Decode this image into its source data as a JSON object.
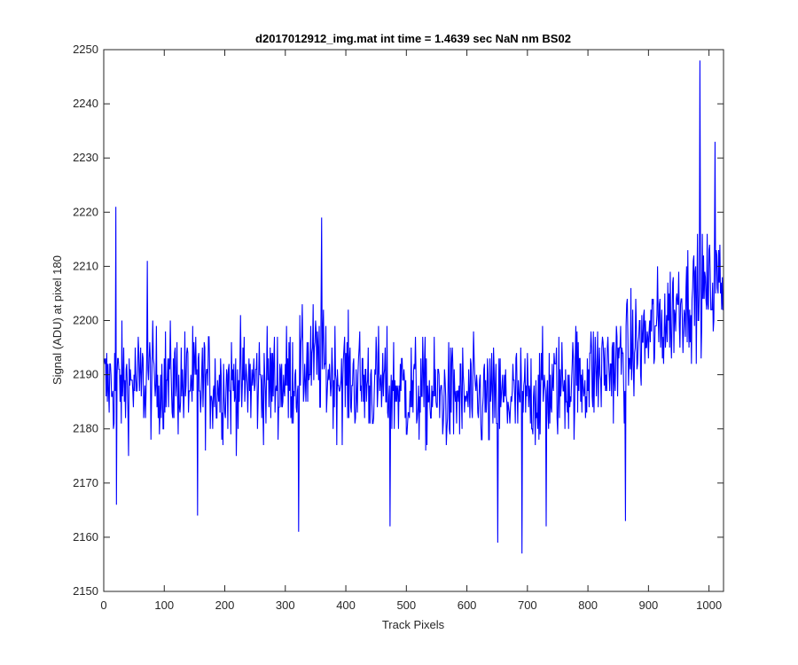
{
  "chart_data": {
    "type": "line",
    "title": "d2017012912_img.mat int time = 1.4639 sec  NaN nm BS02",
    "xlabel": "Track Pixels",
    "ylabel": "Signal (ADU) at pixel 180",
    "xlim": [
      0,
      1024
    ],
    "ylim": [
      2150,
      2250
    ],
    "xticks": [
      0,
      100,
      200,
      300,
      400,
      500,
      600,
      700,
      800,
      900,
      1000
    ],
    "yticks": [
      2150,
      2160,
      2170,
      2180,
      2190,
      2200,
      2210,
      2220,
      2230,
      2240,
      2250
    ],
    "grid": false,
    "legend": "none",
    "series": [
      {
        "name": "signal",
        "color": "#0000ff",
        "x_start": 1,
        "x_step": 1,
        "count": 1024,
        "baseline_trend": [
          {
            "x": 0,
            "y": 2188
          },
          {
            "x": 100,
            "y": 2189
          },
          {
            "x": 200,
            "y": 2188
          },
          {
            "x": 300,
            "y": 2189
          },
          {
            "x": 350,
            "y": 2193
          },
          {
            "x": 380,
            "y": 2190
          },
          {
            "x": 450,
            "y": 2188
          },
          {
            "x": 550,
            "y": 2186
          },
          {
            "x": 650,
            "y": 2185
          },
          {
            "x": 700,
            "y": 2186
          },
          {
            "x": 800,
            "y": 2190
          },
          {
            "x": 850,
            "y": 2192
          },
          {
            "x": 900,
            "y": 2197
          },
          {
            "x": 950,
            "y": 2203
          },
          {
            "x": 1000,
            "y": 2206
          },
          {
            "x": 1024,
            "y": 2207
          }
        ],
        "noise_amplitude": 8,
        "peaks": [
          {
            "x": 20,
            "y": 2221
          },
          {
            "x": 72,
            "y": 2211
          },
          {
            "x": 360,
            "y": 2219
          },
          {
            "x": 985,
            "y": 2248
          },
          {
            "x": 1010,
            "y": 2233
          }
        ],
        "dips": [
          {
            "x": 21,
            "y": 2166
          },
          {
            "x": 155,
            "y": 2164
          },
          {
            "x": 322,
            "y": 2161
          },
          {
            "x": 473,
            "y": 2162
          },
          {
            "x": 651,
            "y": 2159
          },
          {
            "x": 691,
            "y": 2157
          },
          {
            "x": 731,
            "y": 2162
          },
          {
            "x": 862,
            "y": 2163
          }
        ]
      }
    ]
  }
}
